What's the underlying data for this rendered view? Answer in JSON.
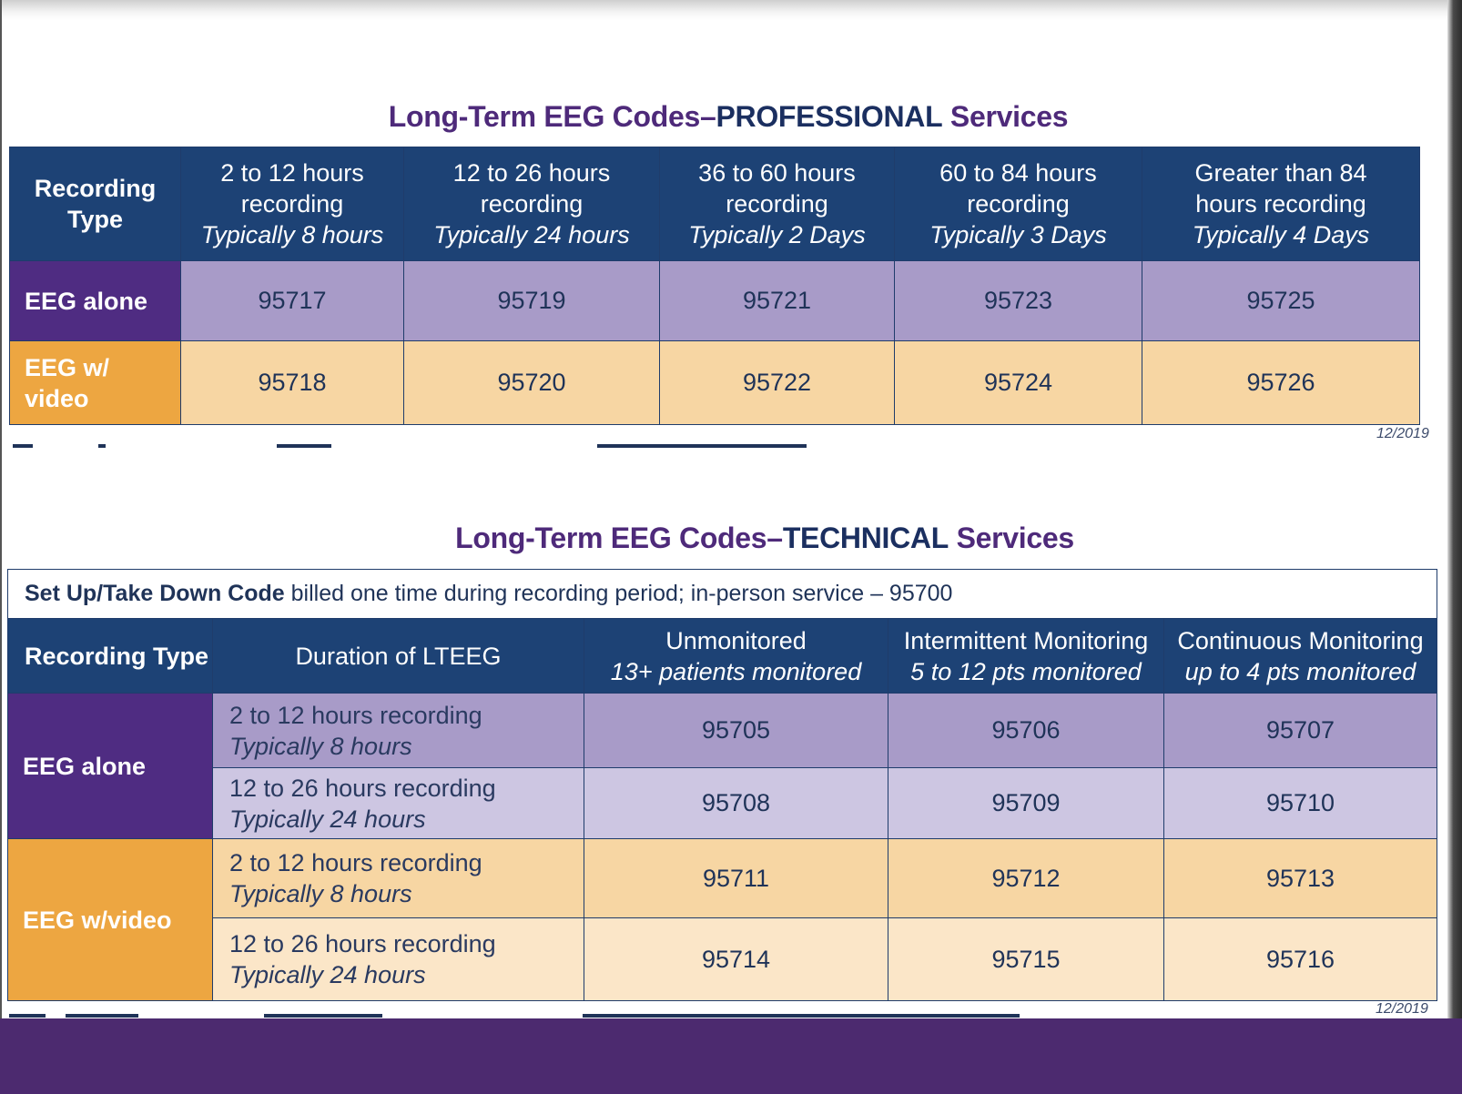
{
  "professional": {
    "title_prefix": "Long-Term EEG Codes–",
    "title_bold": "PROFESSIONAL",
    "title_suffix": " Services",
    "header_recording_type": "Recording Type",
    "columns": [
      {
        "line1": "2 to 12 hours",
        "line2": "recording",
        "italic": "Typically 8 hours"
      },
      {
        "line1": "12 to 26 hours",
        "line2": "recording",
        "italic": "Typically 24 hours"
      },
      {
        "line1": "36 to 60 hours",
        "line2": "recording",
        "italic": "Typically 2 Days"
      },
      {
        "line1": "60 to 84 hours",
        "line2": "recording",
        "italic": "Typically 3 Days"
      },
      {
        "line1": "Greater than 84",
        "line2": "hours recording",
        "italic": "Typically 4 Days"
      }
    ],
    "rows": [
      {
        "label": "EEG alone",
        "codes": [
          "95717",
          "95719",
          "95721",
          "95723",
          "95725"
        ]
      },
      {
        "label": "EEG w/ video",
        "codes": [
          "95718",
          "95720",
          "95722",
          "95724",
          "95726"
        ]
      }
    ],
    "date": "12/2019"
  },
  "technical": {
    "title_prefix": "Long-Term EEG Codes–",
    "title_bold": "TECHNICAL",
    "title_suffix": " Services",
    "setup_bold": "Set Up/Take Down Code",
    "setup_text": " billed one time during recording period; in-person service – 95700",
    "headers": {
      "recording_type": "Recording Type",
      "duration": "Duration of LTEEG",
      "unmonitored": "Unmonitored",
      "unmonitored_sub": "13+ patients monitored",
      "intermittent": "Intermittent Monitoring",
      "intermittent_sub": "5 to 12 pts monitored",
      "continuous": "Continuous Monitoring",
      "continuous_sub": "up to 4 pts monitored"
    },
    "groups": [
      {
        "label": "EEG alone",
        "rows": [
          {
            "duration": "2 to 12 hours recording",
            "typical": "Typically 8 hours",
            "codes": [
              "95705",
              "95706",
              "95707"
            ]
          },
          {
            "duration": "12 to 26 hours recording",
            "typical": "Typically 24 hours",
            "codes": [
              "95708",
              "95709",
              "95710"
            ]
          }
        ]
      },
      {
        "label": "EEG w/video",
        "rows": [
          {
            "duration": "2 to 12 hours recording",
            "typical": "Typically 8 hours",
            "codes": [
              "95711",
              "95712",
              "95713"
            ]
          },
          {
            "duration": "12 to 26 hours recording",
            "typical": "Typically 24 hours",
            "codes": [
              "95714",
              "95715",
              "95716"
            ]
          }
        ]
      }
    ],
    "date": "12/2019"
  },
  "colors": {
    "header_blue": "#1d4275",
    "purple": "#4f2c82",
    "orange": "#eda641",
    "light_purple": "#a89bc8",
    "lighter_purple": "#cdc6e2",
    "light_orange": "#f7d6a3",
    "lighter_orange": "#fbe6c8",
    "bottom_bar": "#4c2a6f"
  }
}
